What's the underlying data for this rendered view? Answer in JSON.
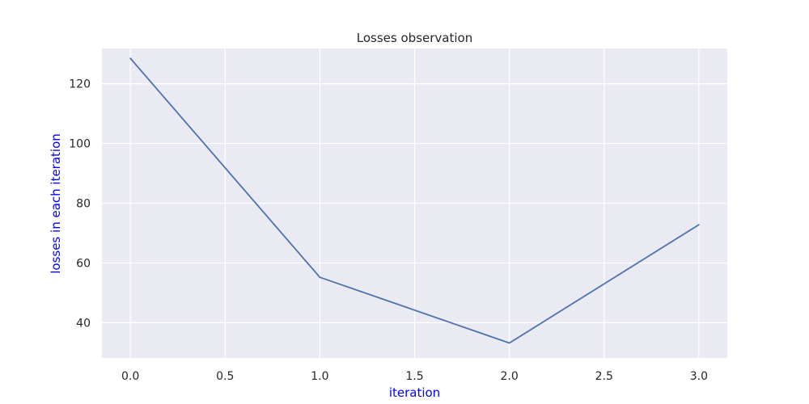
{
  "chart_data": {
    "type": "line",
    "title": "Losses observation",
    "xlabel": "iteration",
    "ylabel": "losses in each iteration",
    "x": [
      0,
      1,
      2,
      3
    ],
    "series": [
      {
        "values": [
          128.5,
          55.2,
          33.2,
          72.8
        ]
      }
    ],
    "xlim": [
      -0.15,
      3.15
    ],
    "ylim": [
      28.2,
      131.8
    ],
    "xticks": [
      0.0,
      0.5,
      1.0,
      1.5,
      2.0,
      2.5,
      3.0
    ],
    "xtick_labels": [
      "0.0",
      "0.5",
      "1.0",
      "1.5",
      "2.0",
      "2.5",
      "3.0"
    ],
    "yticks": [
      40,
      60,
      80,
      100,
      120
    ],
    "ytick_labels": [
      "40",
      "60",
      "80",
      "100",
      "120"
    ],
    "grid": true,
    "colors": {
      "line": "#4c72b0",
      "plot_background": "#eaeaf2",
      "grid": "#ffffff",
      "axis_label": "#0000ff",
      "tick_label": "#262626"
    }
  }
}
